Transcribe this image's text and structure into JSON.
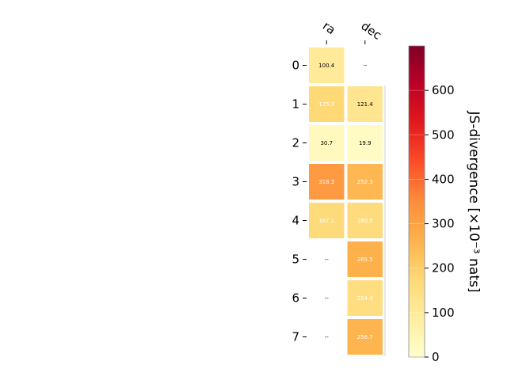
{
  "chart_data": {
    "type": "heatmap",
    "columns": [
      "ra",
      "dec"
    ],
    "rows": [
      "0",
      "1",
      "2",
      "3",
      "4",
      "5",
      "6",
      "7"
    ],
    "values": [
      [
        100.4,
        null
      ],
      [
        175.3,
        121.4
      ],
      [
        30.7,
        19.9
      ],
      [
        318.3,
        252.3
      ],
      [
        167.1,
        160.5
      ],
      [
        null,
        265.5
      ],
      [
        null,
        154.4
      ],
      [
        null,
        256.7
      ]
    ],
    "value_labels": [
      [
        "100.4",
        "--"
      ],
      [
        "175.3",
        "121.4"
      ],
      [
        "30.7",
        "19.9"
      ],
      [
        "318.3",
        "252.3"
      ],
      [
        "167.1",
        "160.5"
      ],
      [
        "--",
        "265.5"
      ],
      [
        "--",
        "154.4"
      ],
      [
        "--",
        "256.7"
      ]
    ],
    "colorbar": {
      "label": "JS-divergence [×10⁻³ nats]",
      "range": [
        0,
        700
      ],
      "ticks": [
        "0",
        "100",
        "200",
        "300",
        "400",
        "500",
        "600"
      ],
      "tick_values": [
        0,
        100,
        200,
        300,
        400,
        500,
        600
      ],
      "colormap": "YlOrRd"
    }
  }
}
